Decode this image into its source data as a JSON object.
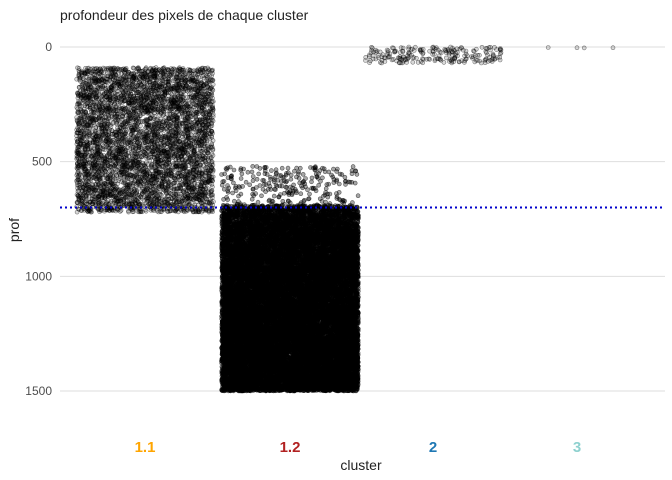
{
  "chart_data": {
    "type": "scatter",
    "title": "profondeur des pixels de chaque cluster",
    "xlabel": "cluster",
    "ylabel": "prof",
    "y_reversed": true,
    "ylim": [
      1500,
      0
    ],
    "yticks": [
      0,
      500,
      1000,
      1500
    ],
    "grid": "horizontal",
    "legend": "none",
    "categories": [
      "1.1",
      "1.2",
      "2",
      "3"
    ],
    "category_colors": [
      "#FFA500",
      "#B22222",
      "#1F78B4",
      "#8ED1CF"
    ],
    "series": [
      {
        "category": "1.1",
        "point_count": 5000,
        "y_min": 90,
        "y_max": 720,
        "jitter_fraction": 0.95
      },
      {
        "category": "1.2",
        "point_count": 22000,
        "y_min": 520,
        "y_max": 1500,
        "jitter_fraction": 0.95
      },
      {
        "category": "2",
        "point_count": 220,
        "y_min": 0,
        "y_max": 70,
        "jitter_fraction": 0.95
      },
      {
        "category": "3",
        "points": [
          [
            -0.4,
            2
          ],
          [
            0.0,
            3
          ],
          [
            0.1,
            4
          ],
          [
            0.5,
            3
          ]
        ]
      }
    ],
    "reference_line": {
      "y": 700,
      "style": "dotted",
      "color": "#0000CD"
    },
    "point_style": {
      "color": "#000000",
      "fill_opacity": 0.15,
      "stroke_opacity": 0.5
    }
  }
}
